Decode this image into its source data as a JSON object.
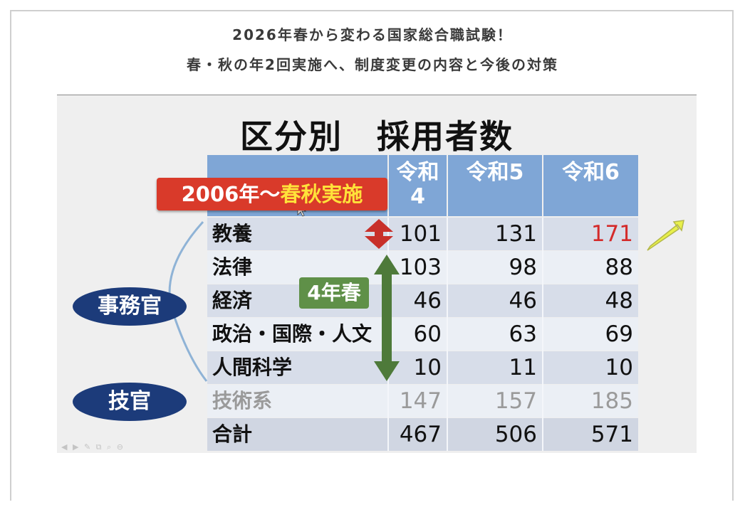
{
  "headline": {
    "line1": "2026年春から変わる国家総合職試験！",
    "line2": "春・秋の年2回実施へ、制度変更の内容と今後の対策"
  },
  "slide": {
    "title": "区分別　採用者数",
    "columns": [
      "令和4",
      "令和5",
      "令和6"
    ],
    "column_display": [
      "令和\n4",
      "令和5",
      "令和6"
    ],
    "groups": {
      "jimukan": "事務官",
      "gikan": "技官"
    },
    "rows": [
      {
        "category": "教養",
        "values": [
          "101",
          "131",
          "171"
        ]
      },
      {
        "category": "法律",
        "values": [
          "103",
          "98",
          "88"
        ]
      },
      {
        "category": "経済",
        "values": [
          "46",
          "46",
          "48"
        ]
      },
      {
        "category": "政治・国際・人文",
        "values": [
          "60",
          "63",
          "69"
        ]
      },
      {
        "category": "人間科学",
        "values": [
          "10",
          "11",
          "10"
        ]
      },
      {
        "category": "技術系",
        "values": [
          "147",
          "157",
          "185"
        ]
      },
      {
        "category": "合計",
        "values": [
          "467",
          "506",
          "571"
        ]
      }
    ],
    "callouts": {
      "red_prefix": "2006年～",
      "red_highlight": "春秋実施",
      "green": "4年春"
    },
    "colors": {
      "header": "#7fa6d6",
      "row_dark": "#d7dde9",
      "row_light": "#ebeff5",
      "highlight_value": "#d42a2a",
      "gikan_text": "#9a9a9a",
      "group_bubble": "#1c3b7a",
      "red_callout": "#d93a2a",
      "green_callout": "#5f9048",
      "yellow_arrow": "#e8f04a"
    },
    "controls": [
      "◀",
      "▶",
      "✎",
      "⧉",
      "⌕",
      "⊖"
    ]
  }
}
